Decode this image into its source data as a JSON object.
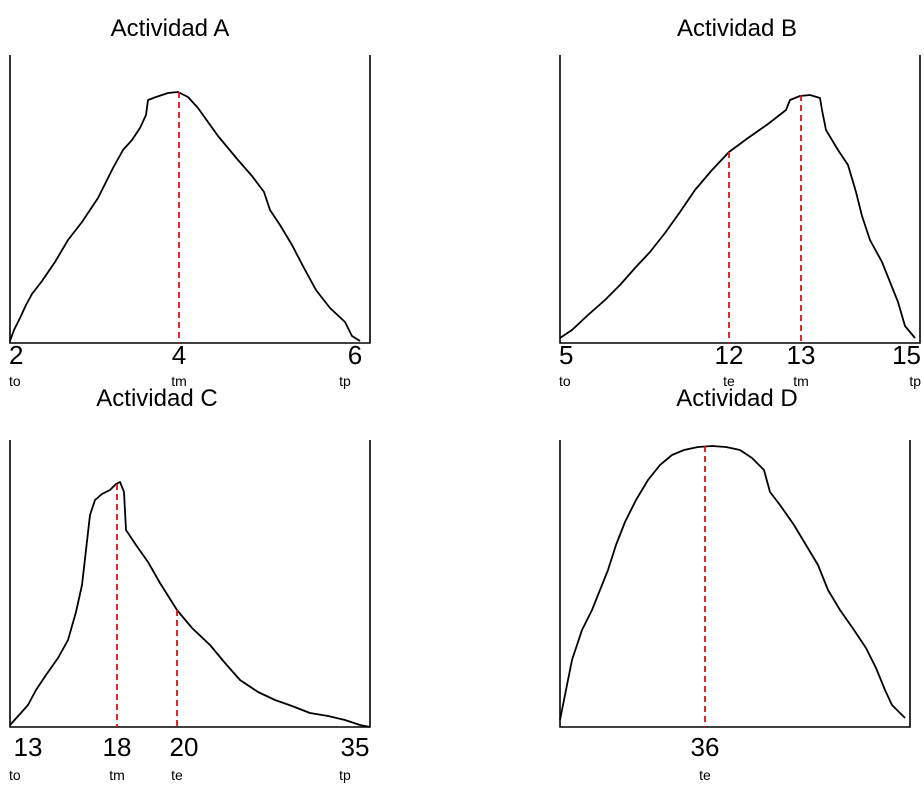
{
  "panels": [
    {
      "title": "Actividad A",
      "ticks": [
        {
          "value": "2",
          "label": "to"
        },
        {
          "value": "4",
          "label": "tm"
        },
        {
          "value": "6",
          "label": "tp"
        }
      ]
    },
    {
      "title": "Actividad B",
      "ticks": [
        {
          "value": "5",
          "label": "to"
        },
        {
          "value": "12",
          "label": "te"
        },
        {
          "value": "13",
          "label": "tm"
        },
        {
          "value": "15",
          "label": "tp"
        }
      ]
    },
    {
      "title": "Actividad C",
      "ticks": [
        {
          "value": "13",
          "label": "to"
        },
        {
          "value": "18",
          "label": "tm"
        },
        {
          "value": "20",
          "label": "te"
        },
        {
          "value": "35",
          "label": "tp"
        }
      ]
    },
    {
      "title": "Actividad D",
      "ticks": [
        {
          "value": "36",
          "label": "te"
        }
      ]
    }
  ],
  "colors": {
    "curve": "#000000",
    "marker": "#e01010",
    "axis": "#000000"
  }
}
